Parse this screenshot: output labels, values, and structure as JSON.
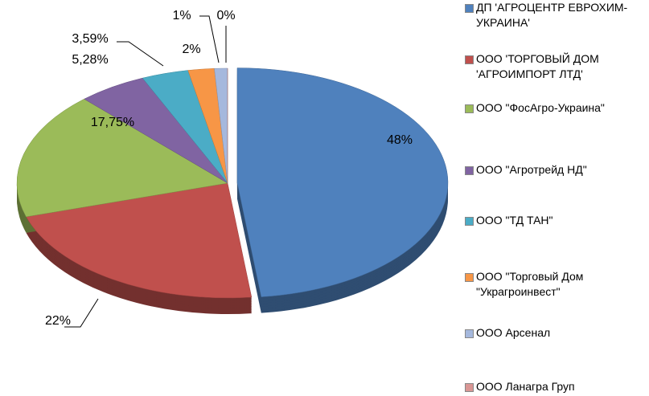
{
  "chart_data": {
    "type": "pie",
    "categories": [
      "ДП 'АГРОЦЕНТР ЕВРОХИМ-УКРАИНА'",
      "ООО 'ТОРГОВЫЙ ДОМ 'АГРОИМПОРТ ЛТД'",
      "ООО \"ФосАгро-Украина\"",
      "ООО \"Агротрейд НД\"",
      "ООО \"ТД ТАН\"",
      "ООО \"Торговый Дом \"Украгроинвест\"",
      "ООО Арсенал",
      "ООО Ланагра Груп"
    ],
    "values": [
      48,
      22,
      17.75,
      5.28,
      3.59,
      2,
      1,
      0
    ],
    "value_labels": [
      "48%",
      "22%",
      "17,75%",
      "5,28%",
      "3,59%",
      "2%",
      "1%",
      "0%"
    ],
    "colors": [
      "#4f81bd",
      "#c0504d",
      "#9bbb59",
      "#8064a2",
      "#4bacc6",
      "#f79646",
      "#a5b8dd",
      "#d99694"
    ],
    "legend": "right"
  }
}
